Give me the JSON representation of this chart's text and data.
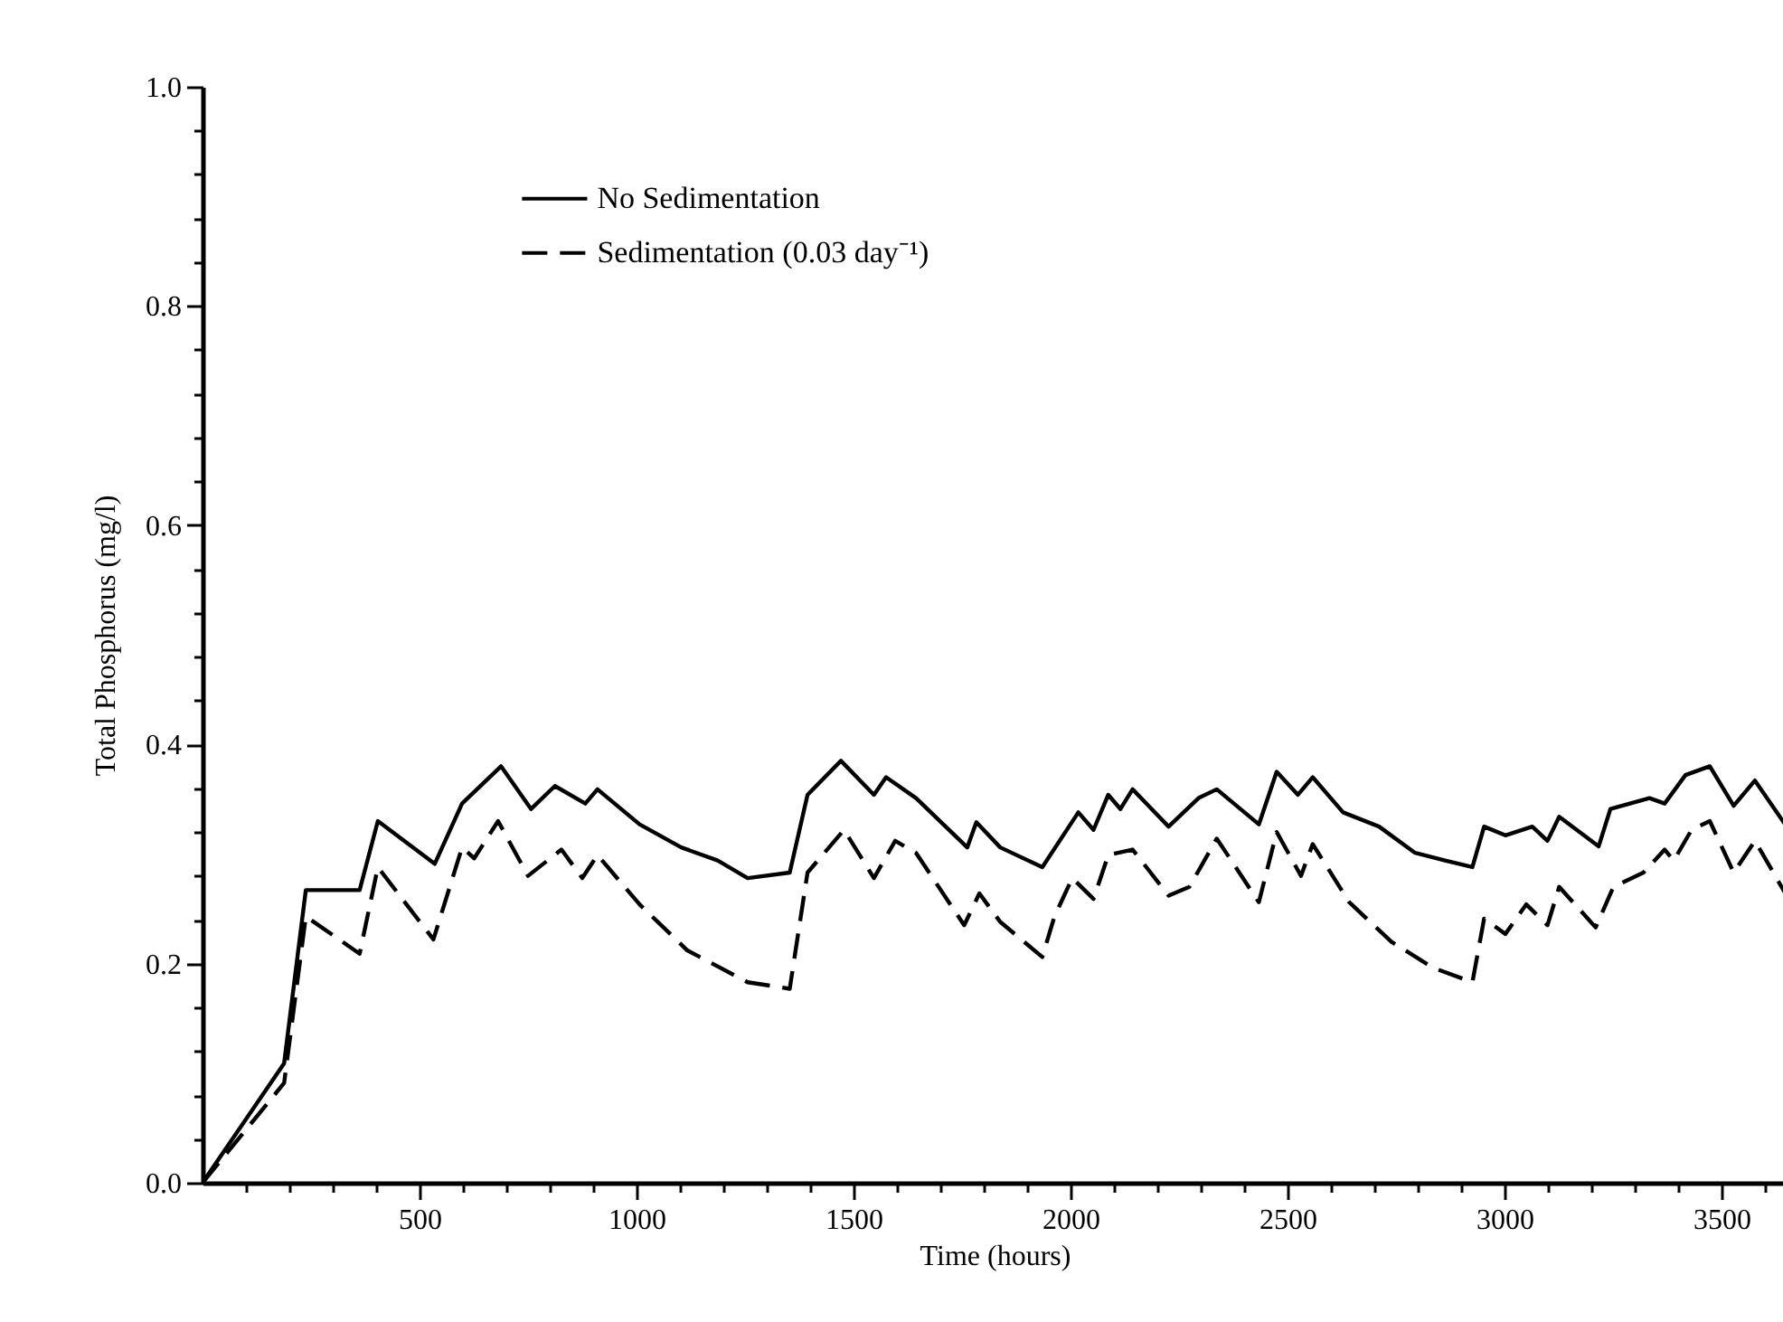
{
  "chart_data": {
    "type": "line",
    "xlabel": "Time (hours)",
    "ylabel": "Total Phosphorus (mg/l)",
    "xlim": [
      0,
      3650
    ],
    "ylim": [
      0,
      1
    ],
    "xticks": [
      {
        "value": 100,
        "label": null
      },
      {
        "value": 200,
        "label": null
      },
      {
        "value": 300,
        "label": null
      },
      {
        "value": 400,
        "label": null
      },
      500,
      {
        "value": 600,
        "label": null
      },
      {
        "value": 700,
        "label": null
      },
      {
        "value": 800,
        "label": null
      },
      {
        "value": 900,
        "label": null
      },
      1000,
      {
        "value": 1100,
        "label": null
      },
      {
        "value": 1200,
        "label": null
      },
      {
        "value": 1300,
        "label": null
      },
      {
        "value": 1400,
        "label": null
      },
      1500,
      {
        "value": 1600,
        "label": null
      },
      {
        "value": 1700,
        "label": null
      },
      {
        "value": 1800,
        "label": null
      },
      {
        "value": 1900,
        "label": null
      },
      2000,
      {
        "value": 2100,
        "label": null
      },
      {
        "value": 2200,
        "label": null
      },
      {
        "value": 2300,
        "label": null
      },
      {
        "value": 2400,
        "label": null
      },
      2500,
      {
        "value": 2600,
        "label": null
      },
      {
        "value": 2700,
        "label": null
      },
      {
        "value": 2800,
        "label": null
      },
      {
        "value": 2900,
        "label": null
      },
      3000,
      {
        "value": 3100,
        "label": null
      },
      {
        "value": 3200,
        "label": null
      },
      {
        "value": 3300,
        "label": null
      },
      {
        "value": 3400,
        "label": null
      },
      3500,
      {
        "value": 3600,
        "label": null
      }
    ],
    "yticks": [
      {
        "value": 0,
        "label": "0.0"
      },
      {
        "value": 0.04,
        "label": null
      },
      {
        "value": 0.08,
        "label": null
      },
      {
        "value": 0.12,
        "label": null
      },
      {
        "value": 0.16,
        "label": null
      },
      {
        "value": 0.2,
        "label": "0.2"
      },
      {
        "value": 0.24,
        "label": null
      },
      {
        "value": 0.28,
        "label": null
      },
      {
        "value": 0.32,
        "label": null
      },
      {
        "value": 0.36,
        "label": null
      },
      {
        "value": 0.4,
        "label": "0.4"
      },
      {
        "value": 0.44,
        "label": null
      },
      {
        "value": 0.48,
        "label": null
      },
      {
        "value": 0.52,
        "label": null
      },
      {
        "value": 0.56,
        "label": null
      },
      {
        "value": 0.6,
        "label": "0.6"
      },
      {
        "value": 0.64,
        "label": null
      },
      {
        "value": 0.68,
        "label": null
      },
      {
        "value": 0.72,
        "label": null
      },
      {
        "value": 0.76,
        "label": null
      },
      {
        "value": 0.8,
        "label": "0.8"
      },
      {
        "value": 0.84,
        "label": null
      },
      {
        "value": 0.88,
        "label": null
      },
      {
        "value": 0.92,
        "label": null
      },
      {
        "value": 0.96,
        "label": null
      },
      {
        "value": 1,
        "label": "1.0"
      }
    ],
    "grid": false,
    "legend": "top left",
    "series": [
      {
        "name": "No Sedimentation",
        "color": "#000000",
        "line_style": "solid",
        "x": [
          0,
          188,
          238,
          362,
          404,
          535,
          598,
          688,
          757,
          812,
          882,
          910,
          1007,
          1103,
          1187,
          1256,
          1353,
          1394,
          1471,
          1547,
          1575,
          1644,
          1762,
          1783,
          1838,
          1935,
          2018,
          2053,
          2087,
          2115,
          2143,
          2226,
          2295,
          2337,
          2434,
          2475,
          2524,
          2558,
          2628,
          2711,
          2794,
          2863,
          2926,
          2953,
          3002,
          3064,
          3099,
          3126,
          3217,
          3244,
          3334,
          3369,
          3417,
          3473,
          3528,
          3577,
          3650
        ],
        "values": [
          0,
          0.109,
          0.267,
          0.267,
          0.33,
          0.291,
          0.346,
          0.38,
          0.341,
          0.362,
          0.346,
          0.359,
          0.327,
          0.306,
          0.294,
          0.278,
          0.283,
          0.354,
          0.385,
          0.354,
          0.37,
          0.351,
          0.306,
          0.329,
          0.306,
          0.288,
          0.338,
          0.322,
          0.354,
          0.341,
          0.359,
          0.325,
          0.351,
          0.359,
          0.327,
          0.375,
          0.354,
          0.37,
          0.338,
          0.325,
          0.301,
          0.294,
          0.288,
          0.325,
          0.317,
          0.325,
          0.312,
          0.334,
          0.307,
          0.341,
          0.351,
          0.346,
          0.372,
          0.38,
          0.344,
          0.367,
          0.325
        ]
      },
      {
        "name": "Sedimentation (0.03 day⁻¹)",
        "color": "#000000",
        "line_style": "dashed",
        "x": [
          0,
          188,
          238,
          362,
          404,
          532,
          598,
          626,
          681,
          750,
          827,
          875,
          910,
          1007,
          1117,
          1256,
          1353,
          1394,
          1478,
          1547,
          1596,
          1644,
          1755,
          1790,
          1838,
          1935,
          1963,
          2004,
          2053,
          2087,
          2143,
          2226,
          2274,
          2337,
          2434,
          2475,
          2531,
          2558,
          2642,
          2739,
          2836,
          2926,
          2953,
          3002,
          3050,
          3099,
          3126,
          3210,
          3251,
          3320,
          3369,
          3390,
          3431,
          3473,
          3528,
          3577,
          3650
        ],
        "values": [
          0,
          0.091,
          0.243,
          0.209,
          0.288,
          0.222,
          0.306,
          0.296,
          0.33,
          0.28,
          0.304,
          0.278,
          0.299,
          0.254,
          0.212,
          0.183,
          0.177,
          0.283,
          0.322,
          0.278,
          0.312,
          0.301,
          0.235,
          0.264,
          0.238,
          0.206,
          0.243,
          0.278,
          0.259,
          0.299,
          0.304,
          0.262,
          0.27,
          0.314,
          0.256,
          0.32,
          0.28,
          0.309,
          0.256,
          0.22,
          0.196,
          0.183,
          0.241,
          0.227,
          0.254,
          0.235,
          0.27,
          0.233,
          0.27,
          0.283,
          0.304,
          0.294,
          0.322,
          0.33,
          0.283,
          0.312,
          0.262
        ]
      }
    ]
  }
}
